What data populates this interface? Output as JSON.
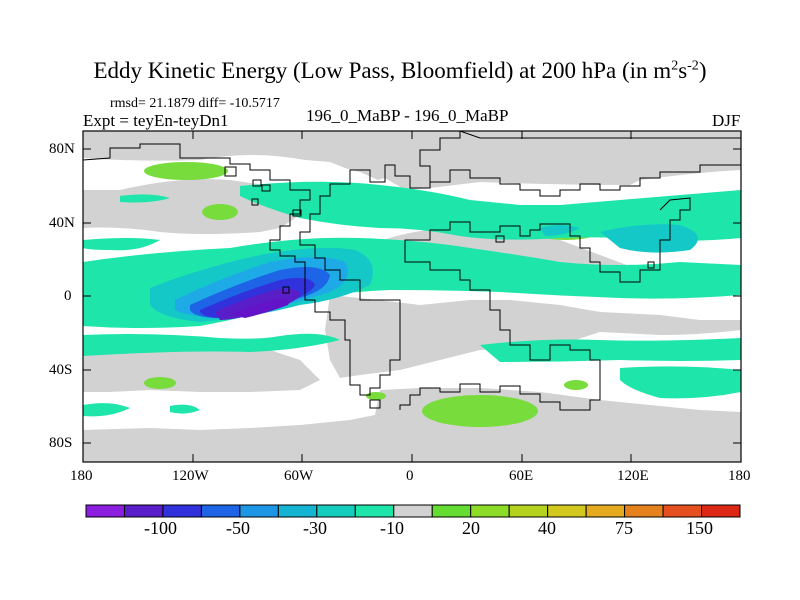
{
  "title": {
    "main": "Eddy Kinetic Energy (Low Pass, Bloomfield) at 200 hPa (in m",
    "sup1": "2",
    "mid": "s",
    "sup2": "-2",
    "end": ")"
  },
  "stats": "rmsd= 21.1879 diff= -10.5717",
  "expt": "Expt = teyEn-teyDn1",
  "center_label": "196_0_MaBP - 196_0_MaBP",
  "season": "DJF",
  "lat_labels": [
    "80N",
    "40N",
    "0",
    "40S",
    "80S"
  ],
  "lon_labels": [
    "180",
    "120W",
    "60W",
    "0",
    "60E",
    "120E",
    "180"
  ],
  "colorbar": {
    "colors": [
      "#8c1ee0",
      "#5a1ec8",
      "#3232dc",
      "#1e64e6",
      "#1e96e6",
      "#14b4d2",
      "#14cdbe",
      "#1ee6aa",
      "#d2d2d2",
      "#64dc32",
      "#8cdc28",
      "#b4d21e",
      "#d2c81e",
      "#e6aa1e",
      "#e6821e",
      "#e6501e",
      "#dc2814"
    ],
    "labels": [
      "-100",
      "-50",
      "-30",
      "-10",
      "20",
      "40",
      "75",
      "150"
    ]
  },
  "palette": {
    "land": "#d2d2d2",
    "green": "#78dc3c",
    "teal": "#1ee6aa",
    "cyan": "#14c8c8",
    "lightblue": "#1eaae6",
    "blue": "#1e64e6",
    "darkblue": "#3232dc",
    "violet": "#5a1ec8",
    "deepviolet": "#6414c8"
  }
}
